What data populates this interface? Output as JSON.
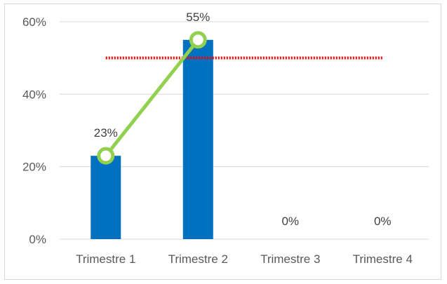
{
  "chart_data": {
    "type": "bar",
    "categories": [
      "Trimestre 1",
      "Trimestre 2",
      "Trimestre 3",
      "Trimestre 4"
    ],
    "series": [
      {
        "type": "bar",
        "values": [
          0.23,
          0.55,
          0,
          0
        ],
        "labels": [
          "23%",
          "55%",
          "0%",
          "0%"
        ],
        "color": "#0070c0"
      },
      {
        "type": "line",
        "values": [
          0.23,
          0.55,
          null,
          null
        ],
        "color": "#92d050"
      },
      {
        "type": "line",
        "values": [
          0.5,
          0.5,
          0.5,
          0.5
        ],
        "color": "#ff0000",
        "style": "dotted"
      }
    ],
    "y_ticks": [
      "0%",
      "20%",
      "40%",
      "60%"
    ],
    "ylim": [
      0,
      0.6
    ],
    "grid": true,
    "legend": "none",
    "title": "",
    "xlabel": "",
    "ylabel": ""
  }
}
